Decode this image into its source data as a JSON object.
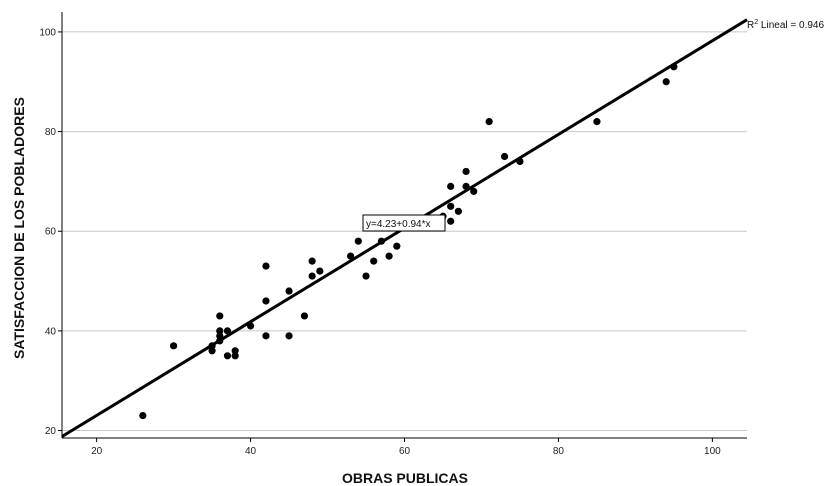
{
  "chart_data": {
    "type": "scatter",
    "xlabel": "OBRAS PUBLICAS",
    "ylabel": "SATISFACCION DE LOS POBLADORES",
    "xlim": [
      15.5,
      104.5
    ],
    "ylim": [
      18.5,
      104
    ],
    "xticks": [
      20,
      40,
      60,
      80,
      100
    ],
    "yticks": [
      20,
      40,
      60,
      80,
      100
    ],
    "grid": "horizontal",
    "points": [
      {
        "x": 26,
        "y": 23
      },
      {
        "x": 30,
        "y": 37
      },
      {
        "x": 35,
        "y": 36
      },
      {
        "x": 35,
        "y": 37
      },
      {
        "x": 36,
        "y": 38
      },
      {
        "x": 36,
        "y": 39
      },
      {
        "x": 36,
        "y": 40
      },
      {
        "x": 36,
        "y": 43
      },
      {
        "x": 37,
        "y": 35
      },
      {
        "x": 37,
        "y": 40
      },
      {
        "x": 38,
        "y": 35
      },
      {
        "x": 38,
        "y": 36
      },
      {
        "x": 40,
        "y": 41
      },
      {
        "x": 42,
        "y": 39
      },
      {
        "x": 42,
        "y": 46
      },
      {
        "x": 42,
        "y": 53
      },
      {
        "x": 45,
        "y": 39
      },
      {
        "x": 45,
        "y": 48
      },
      {
        "x": 47,
        "y": 43
      },
      {
        "x": 48,
        "y": 51
      },
      {
        "x": 48,
        "y": 54
      },
      {
        "x": 49,
        "y": 52
      },
      {
        "x": 53,
        "y": 55
      },
      {
        "x": 54,
        "y": 58
      },
      {
        "x": 55,
        "y": 51
      },
      {
        "x": 56,
        "y": 54
      },
      {
        "x": 57,
        "y": 58
      },
      {
        "x": 58,
        "y": 55
      },
      {
        "x": 59,
        "y": 57
      },
      {
        "x": 65,
        "y": 63
      },
      {
        "x": 66,
        "y": 62
      },
      {
        "x": 66,
        "y": 65
      },
      {
        "x": 66,
        "y": 69
      },
      {
        "x": 67,
        "y": 64
      },
      {
        "x": 68,
        "y": 69
      },
      {
        "x": 68,
        "y": 72
      },
      {
        "x": 69,
        "y": 68
      },
      {
        "x": 71,
        "y": 82
      },
      {
        "x": 73,
        "y": 75
      },
      {
        "x": 75,
        "y": 74
      },
      {
        "x": 85,
        "y": 82
      },
      {
        "x": 94,
        "y": 90
      },
      {
        "x": 95,
        "y": 93
      }
    ],
    "fit_line": {
      "intercept": 4.23,
      "slope": 0.94
    },
    "equation_label": "y=4.23+0.94*x",
    "r2_prefix": "R",
    "r2_sup": "2",
    "r2_label": " Lineal = 0.946",
    "colors": {
      "points": "#000000",
      "line": "#000000",
      "grid": "#c8c8c8",
      "axis": "#000000"
    }
  }
}
